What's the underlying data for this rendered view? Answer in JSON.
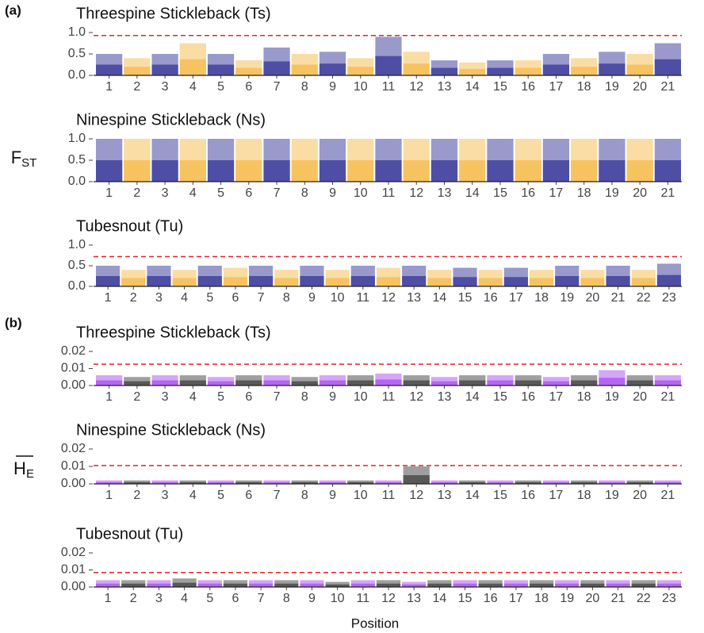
{
  "figure": {
    "panel_a": "(a)",
    "panel_b": "(b)",
    "fst_label": {
      "main": "F",
      "sub": "ST"
    },
    "he_label": {
      "main": "H",
      "sub": "E"
    },
    "x_label": "Position"
  },
  "chart_data": [
    {
      "type": "manhattan",
      "title": "Threespine Stickleback (Ts)",
      "colors": [
        "#1c1c8c",
        "#f5b335"
      ],
      "threshold": 0.93,
      "threshold_color": "#e0242a",
      "categories": [
        "1",
        "2",
        "3",
        "4",
        "5",
        "6",
        "7",
        "8",
        "9",
        "10",
        "11",
        "12",
        "13",
        "14",
        "15",
        "16",
        "17",
        "18",
        "19",
        "20",
        "21"
      ],
      "values": [
        0.5,
        0.4,
        0.5,
        0.75,
        0.5,
        0.35,
        0.65,
        0.5,
        0.55,
        0.4,
        0.9,
        0.55,
        0.35,
        0.3,
        0.35,
        0.35,
        0.5,
        0.4,
        0.55,
        0.5,
        0.75
      ],
      "ylim": [
        0,
        1
      ],
      "yticks": [
        {
          "value": 0,
          "label": "0.0"
        },
        {
          "value": 0.5,
          "label": "0.5"
        },
        {
          "value": 1,
          "label": "1.0"
        }
      ]
    },
    {
      "type": "manhattan",
      "title": "Ninespine Stickleback (Ns)",
      "colors": [
        "#1c1c8c",
        "#f5b335"
      ],
      "categories": [
        "1",
        "2",
        "3",
        "4",
        "5",
        "6",
        "7",
        "8",
        "9",
        "10",
        "11",
        "12",
        "13",
        "14",
        "15",
        "16",
        "17",
        "18",
        "19",
        "20",
        "21"
      ],
      "values": [
        1,
        1,
        1,
        1,
        1,
        1,
        1,
        1,
        1,
        1,
        1,
        1,
        1,
        1,
        1,
        1,
        1,
        1,
        1,
        1,
        1
      ],
      "ylim": [
        0,
        1
      ],
      "yticks": [
        {
          "value": 0,
          "label": "0.0"
        },
        {
          "value": 0.5,
          "label": "0.5"
        },
        {
          "value": 1,
          "label": "1.0"
        }
      ]
    },
    {
      "type": "manhattan",
      "title": "Tubesnout (Tu)",
      "colors": [
        "#1c1c8c",
        "#f5b335"
      ],
      "threshold": 0.72,
      "threshold_color": "#e0242a",
      "categories": [
        "1",
        "2",
        "3",
        "4",
        "5",
        "6",
        "7",
        "8",
        "9",
        "10",
        "11",
        "12",
        "13",
        "14",
        "15",
        "16",
        "17",
        "18",
        "19",
        "20",
        "21",
        "22",
        "23"
      ],
      "values": [
        0.5,
        0.4,
        0.5,
        0.4,
        0.5,
        0.45,
        0.5,
        0.4,
        0.5,
        0.4,
        0.5,
        0.45,
        0.5,
        0.4,
        0.45,
        0.4,
        0.45,
        0.4,
        0.5,
        0.4,
        0.5,
        0.4,
        0.55
      ],
      "ylim": [
        0,
        1
      ],
      "yticks": [
        {
          "value": 0,
          "label": "0.0"
        },
        {
          "value": 0.5,
          "label": "0.5"
        },
        {
          "value": 1,
          "label": "1.0"
        }
      ]
    },
    {
      "type": "manhattan",
      "title": "Threespine Stickleback (Ts)",
      "colors": [
        "#a23af0",
        "#2a2a2a"
      ],
      "threshold": 0.0125,
      "threshold_color": "#e0242a",
      "categories": [
        "1",
        "2",
        "3",
        "4",
        "5",
        "6",
        "7",
        "8",
        "9",
        "10",
        "11",
        "12",
        "13",
        "14",
        "15",
        "16",
        "17",
        "18",
        "19",
        "20",
        "21"
      ],
      "values": [
        0.006,
        0.005,
        0.006,
        0.006,
        0.005,
        0.006,
        0.006,
        0.005,
        0.006,
        0.006,
        0.007,
        0.006,
        0.005,
        0.006,
        0.006,
        0.006,
        0.005,
        0.006,
        0.009,
        0.006,
        0.006
      ],
      "ylim": [
        0,
        0.02
      ],
      "yticks": [
        {
          "value": 0,
          "label": "0.00"
        },
        {
          "value": 0.01,
          "label": "0.01"
        },
        {
          "value": 0.02,
          "label": "0.02"
        }
      ]
    },
    {
      "type": "manhattan",
      "title": "Ninespine Stickleback (Ns)",
      "colors": [
        "#a23af0",
        "#2a2a2a"
      ],
      "threshold": 0.0105,
      "threshold_color": "#e0242a",
      "categories": [
        "1",
        "2",
        "3",
        "4",
        "5",
        "6",
        "7",
        "8",
        "9",
        "10",
        "11",
        "12",
        "13",
        "14",
        "15",
        "16",
        "17",
        "18",
        "19",
        "20",
        "21"
      ],
      "values": [
        0.002,
        0.002,
        0.002,
        0.002,
        0.002,
        0.002,
        0.002,
        0.002,
        0.002,
        0.002,
        0.002,
        0.01,
        0.002,
        0.002,
        0.002,
        0.002,
        0.002,
        0.002,
        0.002,
        0.002,
        0.002
      ],
      "ylim": [
        0,
        0.02
      ],
      "yticks": [
        {
          "value": 0,
          "label": "0.00"
        },
        {
          "value": 0.01,
          "label": "0.01"
        },
        {
          "value": 0.02,
          "label": "0.02"
        }
      ]
    },
    {
      "type": "manhattan",
      "title": "Tubesnout (Tu)",
      "colors": [
        "#a23af0",
        "#2a2a2a"
      ],
      "threshold": 0.0085,
      "threshold_color": "#e0242a",
      "categories": [
        "1",
        "2",
        "3",
        "4",
        "5",
        "6",
        "7",
        "8",
        "9",
        "10",
        "11",
        "12",
        "13",
        "14",
        "15",
        "16",
        "17",
        "18",
        "19",
        "20",
        "21",
        "22",
        "23"
      ],
      "values": [
        0.004,
        0.004,
        0.004,
        0.005,
        0.004,
        0.004,
        0.004,
        0.004,
        0.004,
        0.003,
        0.004,
        0.004,
        0.003,
        0.004,
        0.004,
        0.004,
        0.004,
        0.004,
        0.004,
        0.004,
        0.004,
        0.004,
        0.004
      ],
      "ylim": [
        0,
        0.02
      ],
      "yticks": [
        {
          "value": 0,
          "label": "0.00"
        },
        {
          "value": 0.01,
          "label": "0.01"
        },
        {
          "value": 0.02,
          "label": "0.02"
        }
      ]
    }
  ]
}
